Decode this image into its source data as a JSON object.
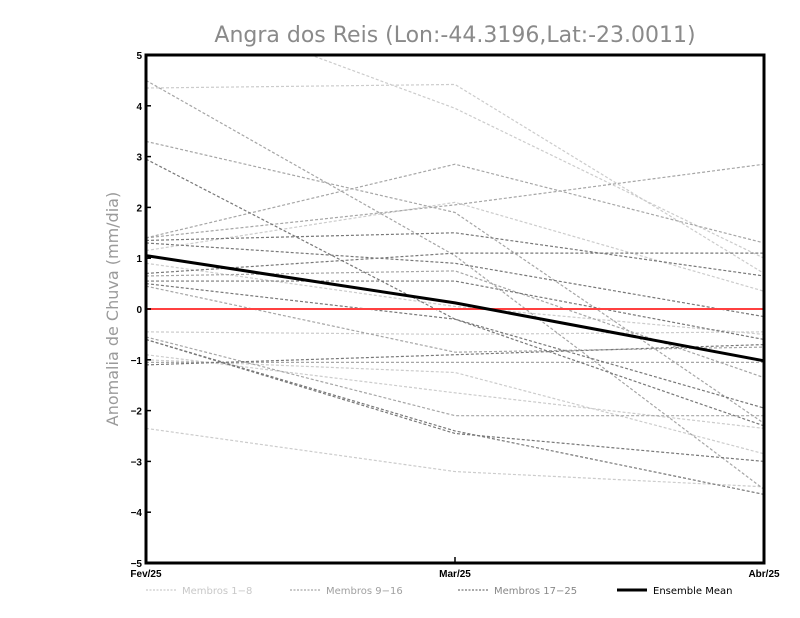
{
  "chart_data": {
    "type": "line",
    "title": "Angra dos Reis (Lon:-44.3196,Lat:-23.0011)",
    "xlabel": "",
    "ylabel": "Anomalia de Chuva (mm/dia)",
    "categories": [
      "Fev/25",
      "Mar/25",
      "Abr/25"
    ],
    "ylim": [
      -5,
      5
    ],
    "yticks": [
      "5",
      "4",
      "3",
      "2",
      "1",
      "0",
      "−1",
      "−2",
      "−3",
      "−4",
      "−5"
    ],
    "ytick_values": [
      5,
      4,
      3,
      2,
      1,
      0,
      -1,
      -2,
      -3,
      -4,
      -5
    ],
    "reference_line": {
      "value": 0,
      "color": "#ff4040"
    },
    "groups": [
      {
        "name": "Membros 1-8",
        "label": "Membros 1−8",
        "color": "#cccccc",
        "series": [
          [
            4.35,
            4.42,
            0.7
          ],
          [
            6.2,
            3.95,
            1.0
          ],
          [
            1.15,
            2.1,
            0.35
          ],
          [
            0.9,
            0.05,
            -0.5
          ],
          [
            -0.45,
            -0.5,
            -0.45
          ],
          [
            -0.9,
            -1.65,
            -2.35
          ],
          [
            -1.0,
            -1.25,
            -2.85
          ],
          [
            -2.35,
            -3.2,
            -3.5
          ]
        ]
      },
      {
        "name": "Membros 9-16",
        "label": "Membros 9−16",
        "color": "#a6a6a6",
        "series": [
          [
            4.5,
            1.05,
            -3.55
          ],
          [
            3.3,
            1.9,
            -2.25
          ],
          [
            1.4,
            2.85,
            1.3
          ],
          [
            1.4,
            2.05,
            2.85
          ],
          [
            0.65,
            0.75,
            -1.35
          ],
          [
            0.45,
            -0.85,
            -0.75
          ],
          [
            -0.55,
            -2.1,
            -2.1
          ],
          [
            -1.05,
            -1.05,
            -1.05
          ]
        ]
      },
      {
        "name": "Membros 17-25",
        "label": "Membros 17−25",
        "color": "#787878",
        "series": [
          [
            2.95,
            -0.2,
            -1.95
          ],
          [
            1.35,
            1.5,
            0.65
          ],
          [
            1.3,
            0.9,
            -0.15
          ],
          [
            0.7,
            1.1,
            1.1
          ],
          [
            0.55,
            0.55,
            -0.6
          ],
          [
            0.5,
            -0.2,
            -2.3
          ],
          [
            -0.6,
            -2.45,
            -3.0
          ],
          [
            -1.1,
            -0.9,
            -0.7
          ],
          [
            -0.6,
            -2.4,
            -3.65
          ]
        ]
      }
    ],
    "ensemble_mean": {
      "name": "Ensemble Mean",
      "label": "Ensemble Mean",
      "color": "#000000",
      "values": [
        1.05,
        0.12,
        -1.02
      ]
    },
    "grid": false,
    "legend": "bottom"
  }
}
